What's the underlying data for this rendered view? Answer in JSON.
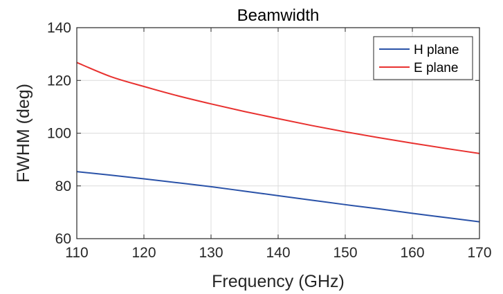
{
  "chart_data": {
    "type": "line",
    "title": "Beamwidth",
    "xlabel": "Frequency (GHz)",
    "ylabel": "FWHM (deg)",
    "xlim": [
      110,
      170
    ],
    "ylim": [
      60,
      140
    ],
    "xticks": [
      110,
      120,
      130,
      140,
      150,
      160,
      170
    ],
    "yticks": [
      60,
      80,
      100,
      120,
      140
    ],
    "grid": true,
    "legend_position": "top-right",
    "x": [
      110,
      115,
      120,
      125,
      130,
      135,
      140,
      145,
      150,
      155,
      160,
      165,
      170
    ],
    "series": [
      {
        "name": "H plane",
        "color": "#2a52a8",
        "values": [
          85.4,
          84.1,
          82.7,
          81.2,
          79.7,
          78.0,
          76.3,
          74.6,
          72.9,
          71.3,
          69.6,
          68.0,
          66.4
        ]
      },
      {
        "name": "E plane",
        "color": "#e8312f",
        "values": [
          126.8,
          121.5,
          117.7,
          114.2,
          111.1,
          108.2,
          105.5,
          102.9,
          100.5,
          98.3,
          96.2,
          94.2,
          92.3
        ]
      }
    ]
  }
}
